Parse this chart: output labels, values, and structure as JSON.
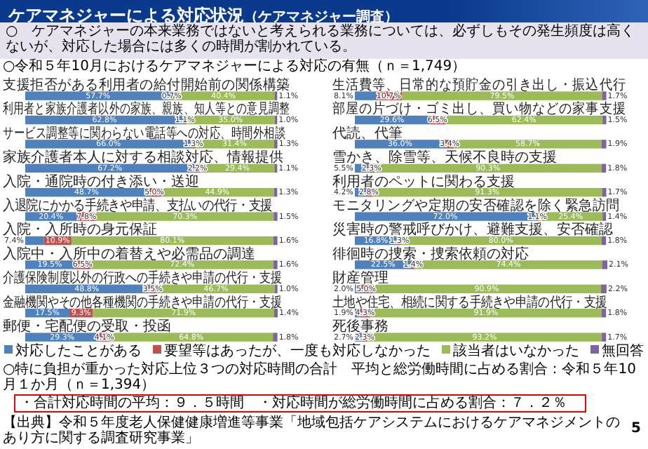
{
  "chart_data": [
    {
      "type": "bar",
      "orientation": "horizontal",
      "stacked": true,
      "legend": "bottom",
      "title": "○令和５年10月におけるケアマネジャーによる対応の有無（ｎ＝1,749）",
      "annotations": [
        "ケアマネジャーによる対応状況",
        "（ケアマネジャー調査）",
        "○　ケアマネジャーの本来業務ではないと考えられる業務については、必ずしもその発生頻度は高くないが、対応した場合には多くの時間が割かれている。",
        "○特に負担が重かった対応上位３つの対応時間の合計　平均と総労働時間に占める割合：令和５年10月１か月（ｎ＝1,394）",
        "・合計対応時間の平均：９．５時間",
        "・対応時間が総労働時間に占める割合：７．２％",
        "【出典】令和５年度老人保健健康増進等事業「地域包括ケアシステムにおけるケアマネジメントのあり方に関する調査研究事業」",
        "5"
      ],
      "categories": [
        "支援拒否がある利用者の給付開始前の関係構築",
        "利用者と家族介護者以外の家族、親族、知人等との意見調整",
        "サービス調整等に関わらない電話等への対応、時間外相談",
        "家族介護者本人に対する相談対応、情報提供",
        "入院・通院時の付き添い・送迎",
        "入退院にかかる手続きや申請、支払いの代行・支援",
        "入院・入所時の身元保証",
        "入院中・入所中の着替えや必需品の調達",
        "介護保険制度以外の行政への手続きや申請の代行・支援",
        "金融機関やその他各種機関の手続きや申請の代行・支援",
        "郵便・宅配便の受取・投函"
      ],
      "series": [
        {
          "name": "対応したことがある",
          "color": "#4f81bd",
          "values": [
            57.7,
            62.8,
            66.0,
            67.2,
            48.7,
            20.4,
            7.4,
            19.5,
            48.8,
            17.5,
            29.3
          ],
          "value_labels": [
            "57.7%",
            "62.8%",
            "66.0%",
            "67.2%",
            "48.7%",
            "20.4%",
            "7.4%",
            "19.5%",
            "48.8%",
            "17.5%",
            "29.3%"
          ]
        },
        {
          "name": "要望等はあったが、一度も対応しなかった",
          "color": "#c0504d",
          "values": [
            0.7,
            1.1,
            1.3,
            2.2,
            5.0,
            7.8,
            10.9,
            6.5,
            3.5,
            9.3,
            4.1
          ],
          "value_labels": [
            "0.7%",
            "1.1%",
            "1.3%",
            "2.2%",
            "5.0%",
            "7.8%",
            "10.9%",
            "6.5%",
            "3.5%",
            "9.3%",
            "4.1%"
          ]
        },
        {
          "name": "該当者はいなかった",
          "color": "#9bbb59",
          "values": [
            40.4,
            35.0,
            31.4,
            29.4,
            44.9,
            70.3,
            80.1,
            72.4,
            46.7,
            71.9,
            64.8
          ],
          "value_labels": [
            "40.4%",
            "35.0%",
            "31.4%",
            "29.4%",
            "44.9%",
            "70.3%",
            "80.1%",
            "72.4%",
            "46.7%",
            "71.9%",
            "64.8%"
          ]
        },
        {
          "name": "無回答",
          "color": "#8064a2",
          "values": [
            1.1,
            1.0,
            1.3,
            1.1,
            1.3,
            1.5,
            1.6,
            1.6,
            1.0,
            1.4,
            1.8
          ],
          "value_labels": [
            "1.1%",
            "1.0%",
            "1.3%",
            "1.1%",
            "1.3%",
            "1.5%",
            "1.6%",
            "1.6%",
            "1.0%",
            "1.4%",
            "1.8%"
          ]
        }
      ]
    },
    {
      "type": "bar",
      "orientation": "horizontal",
      "stacked": true,
      "categories": [
        "生活費等、日常的な預貯金の引き出し・振込代行",
        "部屋の片づけ・ゴミ出し、買い物などの家事支援",
        "代読、代筆",
        "雪かき、除雪等、天候不良時の支援",
        "利用者のペットに関わる支援",
        "モニタリングや定期の安否確認を除く緊急訪問",
        "災害時の警戒呼びかけ、避難支援、安否確認",
        "徘徊時の捜索・捜索依頼の対応",
        "財産管理",
        "土地や住宅、相続に関する手続きや申請の代行・支援",
        "死後事務"
      ],
      "series": [
        {
          "color": "#4f81bd",
          "values": [
            8.1,
            29.6,
            36.0,
            5.5,
            4.2,
            72.0,
            16.8,
            22.5,
            2.0,
            1.9,
            2.7
          ],
          "value_labels": [
            "8.1%",
            "29.6%",
            "36.0%",
            "5.5%",
            "4.2%",
            "72.0%",
            "16.8%",
            "22.5%",
            "2.0%",
            "1.9%",
            "2.7%"
          ]
        },
        {
          "color": "#c0504d",
          "values": [
            10.7,
            6.5,
            3.4,
            2.3,
            2.8,
            1.1,
            1.3,
            1.4,
            5.0,
            4.3,
            2.3
          ],
          "value_labels": [
            "10.7%",
            "6.5%",
            "3.4%",
            "2.3%",
            "2.8%",
            "1.1%",
            "1.3%",
            "1.4%",
            "5.0%",
            "4.3%",
            "2.3%"
          ]
        },
        {
          "color": "#9bbb59",
          "values": [
            79.5,
            62.4,
            58.7,
            90.3,
            91.3,
            25.4,
            80.0,
            74.4,
            90.9,
            91.9,
            93.2
          ],
          "value_labels": [
            "79.5%",
            "62.4%",
            "58.7%",
            "90.3%",
            "91.3%",
            "25.4%",
            "80.0%",
            "74.4%",
            "90.9%",
            "91.9%",
            "93.2%"
          ]
        },
        {
          "color": "#8064a2",
          "values": [
            1.7,
            1.5,
            1.9,
            1.8,
            1.7,
            1.4,
            1.8,
            2.1,
            2.2,
            1.8,
            1.7
          ],
          "value_labels": [
            "1.7%",
            "1.5%",
            "1.9%",
            "1.8%",
            "1.7%",
            "1.4%",
            "1.8%",
            "2.1%",
            "2.2%",
            "1.8%",
            "1.7%"
          ]
        }
      ]
    }
  ]
}
